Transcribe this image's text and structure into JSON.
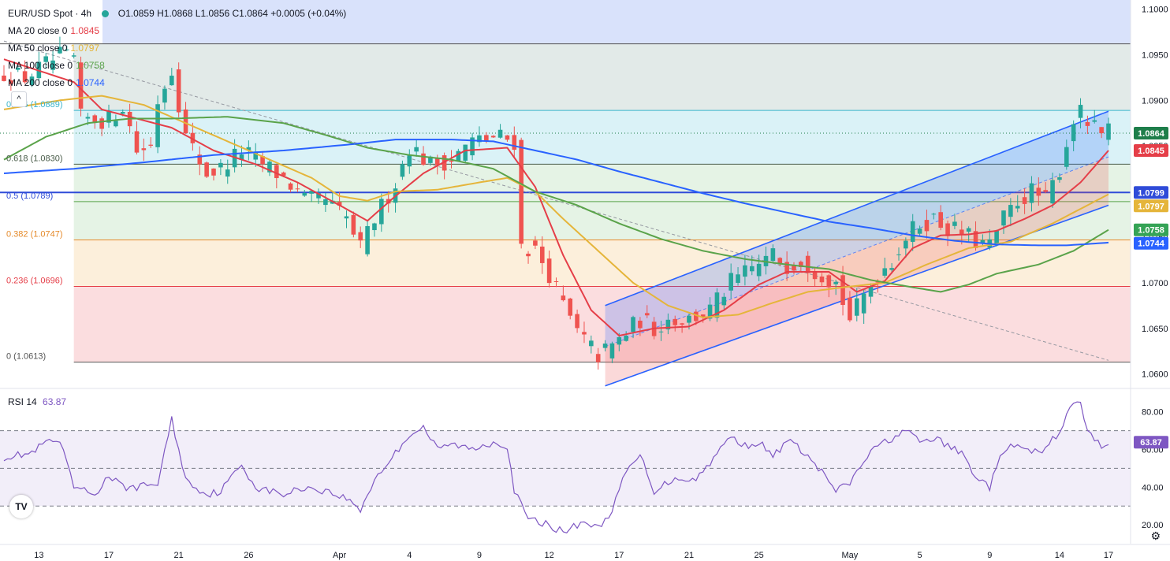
{
  "header": {
    "symbol": "EUR/USD Spot · 4h",
    "ohlc": "O1.0859 H1.0868 L1.0856 C1.0864 +0.0005 (+0.04%)"
  },
  "indicators": [
    {
      "label": "MA 20 close 0",
      "value": "1.0845",
      "color": "#e53e48"
    },
    {
      "label": "MA 50 close 0",
      "value": "1.0797",
      "color": "#e5b53a"
    },
    {
      "label": "MA 100 close 0",
      "value": "1.0758",
      "color": "#5aa34a"
    },
    {
      "label": "MA 200 close 0",
      "value": "1.0744",
      "color": "#2962ff"
    }
  ],
  "fib_labels": [
    {
      "text": "0.786 (1.0889)",
      "level": 1.0889,
      "color": "#3ab5cb"
    },
    {
      "text": "0.618 (1.0830)",
      "level": 1.083,
      "color": "#4a5d4a"
    },
    {
      "text": "0.5 (1.0789)",
      "level": 1.0789,
      "color": "#2f4bd8"
    },
    {
      "text": "0.382 (1.0747)",
      "level": 1.0747,
      "color": "#e58a2a"
    },
    {
      "text": "0.236 (1.0696)",
      "level": 1.0696,
      "color": "#e53e48"
    },
    {
      "text": "0 (1.0613)",
      "level": 1.0613,
      "color": "#555555"
    }
  ],
  "price_badges": [
    {
      "text": "1.0864",
      "value": 1.0864,
      "bg": "#1e7e4a"
    },
    {
      "text": "1.0845",
      "value": 1.0845,
      "bg": "#e53e48"
    },
    {
      "text": "1.0799",
      "value": 1.0799,
      "bg": "#2f4bd8"
    },
    {
      "text": "1.0797",
      "value": 1.0797,
      "bg": "#e5b53a"
    },
    {
      "text": "1.0758",
      "value": 1.0758,
      "bg": "#35a356"
    },
    {
      "text": "1.0744",
      "value": 1.0744,
      "bg": "#2962ff"
    }
  ],
  "rsi": {
    "label": "RSI 14",
    "value": "63.87",
    "badge": "63.87",
    "color": "#7e57c2"
  },
  "colors": {
    "up": "#26a69a",
    "down": "#ef5350",
    "channel": "#2962ff",
    "trend": "#9598a1"
  },
  "ui": {
    "logo": "TV",
    "collapse": "^",
    "settings_icon": "gear-icon",
    "settings_glyph": "⚙"
  },
  "chart_data": {
    "type": "candlestick",
    "timeframe": "4h",
    "price_axis": {
      "ylim": [
        1.0585,
        1.101
      ],
      "ticks": [
        "1.0600",
        "1.0650",
        "1.0700",
        "1.0750",
        "1.0800",
        "1.0850",
        "1.0900",
        "1.0950",
        "1.1000"
      ]
    },
    "rsi_axis": {
      "ylim": [
        10,
        92
      ],
      "ticks": [
        "20.00",
        "40.00",
        "60.00",
        "80.00"
      ],
      "bands": [
        70,
        50,
        30
      ]
    },
    "x_range": [
      0,
      158
    ],
    "x_ticks": [
      {
        "label": "13",
        "x": 5
      },
      {
        "label": "17",
        "x": 15
      },
      {
        "label": "21",
        "x": 25
      },
      {
        "label": "26",
        "x": 35
      },
      {
        "label": "Apr",
        "x": 48
      },
      {
        "label": "4",
        "x": 58
      },
      {
        "label": "9",
        "x": 68
      },
      {
        "label": "12",
        "x": 78
      },
      {
        "label": "17",
        "x": 88
      },
      {
        "label": "21",
        "x": 98
      },
      {
        "label": "25",
        "x": 108
      },
      {
        "label": "May",
        "x": 121
      },
      {
        "label": "5",
        "x": 131
      },
      {
        "label": "9",
        "x": 141
      },
      {
        "label": "14",
        "x": 151
      },
      {
        "label": "17",
        "x": 158
      }
    ],
    "close_anchors": [
      [
        0,
        1.093
      ],
      [
        3,
        1.0925
      ],
      [
        8,
        1.0948
      ],
      [
        10,
        1.0945
      ],
      [
        11,
        1.088
      ],
      [
        15,
        1.0878
      ],
      [
        17,
        1.0895
      ],
      [
        19,
        1.0845
      ],
      [
        21,
        1.085
      ],
      [
        22,
        1.09
      ],
      [
        24,
        1.0935
      ],
      [
        26,
        1.086
      ],
      [
        29,
        1.082
      ],
      [
        31,
        1.0825
      ],
      [
        34,
        1.0845
      ],
      [
        37,
        1.083
      ],
      [
        40,
        1.0815
      ],
      [
        43,
        1.079
      ],
      [
        46,
        1.079
      ],
      [
        49,
        1.077
      ],
      [
        51,
        1.0737
      ],
      [
        53,
        1.077
      ],
      [
        56,
        1.081
      ],
      [
        58,
        1.085
      ],
      [
        61,
        1.083
      ],
      [
        64,
        1.0835
      ],
      [
        67,
        1.0855
      ],
      [
        71,
        1.086
      ],
      [
        73,
        1.0855
      ],
      [
        74,
        1.074
      ],
      [
        76,
        1.0735
      ],
      [
        78,
        1.071
      ],
      [
        80,
        1.0675
      ],
      [
        82,
        1.0645
      ],
      [
        85,
        1.062
      ],
      [
        87,
        1.063
      ],
      [
        89,
        1.0645
      ],
      [
        91,
        1.066
      ],
      [
        93,
        1.065
      ],
      [
        95,
        1.066
      ],
      [
        98,
        1.066
      ],
      [
        101,
        1.067
      ],
      [
        104,
        1.07
      ],
      [
        106,
        1.071
      ],
      [
        108,
        1.072
      ],
      [
        110,
        1.073
      ],
      [
        112,
        1.072
      ],
      [
        114,
        1.0725
      ],
      [
        117,
        1.071
      ],
      [
        119,
        1.07
      ],
      [
        121,
        1.066
      ],
      [
        123,
        1.0685
      ],
      [
        125,
        1.071
      ],
      [
        127,
        1.0725
      ],
      [
        129,
        1.075
      ],
      [
        131,
        1.0765
      ],
      [
        133,
        1.077
      ],
      [
        135,
        1.076
      ],
      [
        137,
        1.0755
      ],
      [
        139,
        1.0745
      ],
      [
        141,
        1.074
      ],
      [
        143,
        1.077
      ],
      [
        145,
        1.079
      ],
      [
        147,
        1.08
      ],
      [
        149,
        1.079
      ],
      [
        151,
        1.0825
      ],
      [
        153,
        1.088
      ],
      [
        154,
        1.0885
      ],
      [
        155,
        1.0875
      ],
      [
        156,
        1.0868
      ],
      [
        157,
        1.0862
      ],
      [
        158,
        1.0864
      ]
    ],
    "moving_averages": [
      {
        "name": "MA 20",
        "color": "#e53e48",
        "points": [
          [
            0,
            1.0945
          ],
          [
            10,
            1.092
          ],
          [
            14,
            1.089
          ],
          [
            19,
            1.088
          ],
          [
            24,
            1.087
          ],
          [
            30,
            1.0845
          ],
          [
            36,
            1.083
          ],
          [
            42,
            1.081
          ],
          [
            48,
            1.0785
          ],
          [
            52,
            1.0768
          ],
          [
            56,
            1.0795
          ],
          [
            60,
            1.082
          ],
          [
            66,
            1.0845
          ],
          [
            72,
            1.0848
          ],
          [
            76,
            1.0805
          ],
          [
            80,
            1.073
          ],
          [
            84,
            1.067
          ],
          [
            88,
            1.0642
          ],
          [
            93,
            1.065
          ],
          [
            98,
            1.0652
          ],
          [
            103,
            1.067
          ],
          [
            108,
            1.0698
          ],
          [
            112,
            1.0712
          ],
          [
            118,
            1.0712
          ],
          [
            122,
            1.069
          ],
          [
            126,
            1.0702
          ],
          [
            130,
            1.0738
          ],
          [
            134,
            1.0752
          ],
          [
            138,
            1.0753
          ],
          [
            142,
            1.0757
          ],
          [
            146,
            1.077
          ],
          [
            150,
            1.0785
          ],
          [
            154,
            1.081
          ],
          [
            158,
            1.0845
          ]
        ]
      },
      {
        "name": "MA 50",
        "color": "#e5b53a",
        "points": [
          [
            0,
            1.089
          ],
          [
            8,
            1.09
          ],
          [
            14,
            1.0905
          ],
          [
            20,
            1.0895
          ],
          [
            26,
            1.0875
          ],
          [
            32,
            1.0855
          ],
          [
            38,
            1.0835
          ],
          [
            44,
            1.0815
          ],
          [
            48,
            1.0795
          ],
          [
            52,
            1.079
          ],
          [
            56,
            1.08
          ],
          [
            62,
            1.0802
          ],
          [
            68,
            1.081
          ],
          [
            72,
            1.0815
          ],
          [
            76,
            1.08
          ],
          [
            80,
            1.077
          ],
          [
            85,
            1.0735
          ],
          [
            90,
            1.07
          ],
          [
            95,
            1.0675
          ],
          [
            100,
            1.0662
          ],
          [
            105,
            1.0665
          ],
          [
            110,
            1.0678
          ],
          [
            115,
            1.069
          ],
          [
            120,
            1.0695
          ],
          [
            126,
            1.07
          ],
          [
            132,
            1.072
          ],
          [
            138,
            1.0738
          ],
          [
            144,
            1.0745
          ],
          [
            150,
            1.0765
          ],
          [
            158,
            1.0797
          ]
        ]
      },
      {
        "name": "MA 100",
        "color": "#5aa34a",
        "points": [
          [
            0,
            1.0835
          ],
          [
            6,
            1.086
          ],
          [
            12,
            1.0875
          ],
          [
            18,
            1.088
          ],
          [
            24,
            1.088
          ],
          [
            32,
            1.0882
          ],
          [
            40,
            1.0875
          ],
          [
            46,
            1.0862
          ],
          [
            52,
            1.0848
          ],
          [
            58,
            1.084
          ],
          [
            64,
            1.0835
          ],
          [
            70,
            1.0825
          ],
          [
            76,
            1.08
          ],
          [
            82,
            1.0785
          ],
          [
            88,
            1.0765
          ],
          [
            94,
            1.0748
          ],
          [
            100,
            1.0735
          ],
          [
            106,
            1.0726
          ],
          [
            112,
            1.072
          ],
          [
            118,
            1.0715
          ],
          [
            124,
            1.0703
          ],
          [
            130,
            1.0695
          ],
          [
            134,
            1.069
          ],
          [
            138,
            1.0698
          ],
          [
            142,
            1.071
          ],
          [
            148,
            1.072
          ],
          [
            153,
            1.0735
          ],
          [
            158,
            1.0758
          ]
        ]
      },
      {
        "name": "MA 200",
        "color": "#2962ff",
        "points": [
          [
            0,
            1.082
          ],
          [
            10,
            1.0825
          ],
          [
            20,
            1.0832
          ],
          [
            30,
            1.084
          ],
          [
            40,
            1.0845
          ],
          [
            50,
            1.0852
          ],
          [
            56,
            1.0857
          ],
          [
            64,
            1.0857
          ],
          [
            70,
            1.0855
          ],
          [
            76,
            1.0845
          ],
          [
            82,
            1.0835
          ],
          [
            88,
            1.0822
          ],
          [
            94,
            1.081
          ],
          [
            100,
            1.0798
          ],
          [
            106,
            1.0787
          ],
          [
            112,
            1.0777
          ],
          [
            118,
            1.0767
          ],
          [
            124,
            1.076
          ],
          [
            130,
            1.0752
          ],
          [
            136,
            1.0746
          ],
          [
            142,
            1.0742
          ],
          [
            148,
            1.0741
          ],
          [
            152,
            1.0741
          ],
          [
            158,
            1.0744
          ]
        ]
      }
    ],
    "fib_retracement": {
      "x_start": 10,
      "x_end": 158,
      "levels": [
        {
          "ratio": 1.0,
          "price": 1.0962
        },
        {
          "ratio": 0.786,
          "price": 1.0889
        },
        {
          "ratio": 0.618,
          "price": 1.083
        },
        {
          "ratio": 0.5,
          "price": 1.0789
        },
        {
          "ratio": 0.382,
          "price": 1.0747
        },
        {
          "ratio": 0.236,
          "price": 1.0696
        },
        {
          "ratio": 0,
          "price": 1.0613
        }
      ],
      "top_zone": [
        1.0962,
        1.101
      ],
      "blue_line": 1.0799
    },
    "channel": {
      "upper": [
        [
          86,
          1.0675
        ],
        [
          158,
          1.0888
        ]
      ],
      "middle": [
        [
          86,
          1.063
        ],
        [
          158,
          1.0838
        ]
      ],
      "lower": [
        [
          86,
          1.0587
        ],
        [
          158,
          1.0785
        ]
      ]
    },
    "trendline": [
      [
        0,
        1.0965
      ],
      [
        158,
        1.0615
      ]
    ],
    "last_price_line": 1.0864,
    "rsi_anchors": [
      [
        0,
        56
      ],
      [
        4,
        58
      ],
      [
        6,
        64
      ],
      [
        8,
        64
      ],
      [
        10,
        40
      ],
      [
        13,
        36
      ],
      [
        15,
        46
      ],
      [
        17,
        40
      ],
      [
        19,
        40
      ],
      [
        22,
        42
      ],
      [
        24,
        76
      ],
      [
        26,
        44
      ],
      [
        29,
        36
      ],
      [
        31,
        38
      ],
      [
        34,
        52
      ],
      [
        36,
        40
      ],
      [
        40,
        36
      ],
      [
        43,
        40
      ],
      [
        46,
        38
      ],
      [
        49,
        34
      ],
      [
        51,
        28
      ],
      [
        53,
        44
      ],
      [
        56,
        58
      ],
      [
        58,
        68
      ],
      [
        60,
        72
      ],
      [
        62,
        60
      ],
      [
        64,
        63
      ],
      [
        67,
        60
      ],
      [
        70,
        64
      ],
      [
        72,
        62
      ],
      [
        73,
        38
      ],
      [
        75,
        23
      ],
      [
        78,
        20
      ],
      [
        80,
        16
      ],
      [
        83,
        22
      ],
      [
        85,
        18
      ],
      [
        87,
        28
      ],
      [
        89,
        48
      ],
      [
        91,
        57
      ],
      [
        93,
        38
      ],
      [
        96,
        45
      ],
      [
        99,
        44
      ],
      [
        102,
        58
      ],
      [
        104,
        67
      ],
      [
        106,
        62
      ],
      [
        108,
        64
      ],
      [
        110,
        56
      ],
      [
        112,
        65
      ],
      [
        114,
        60
      ],
      [
        117,
        48
      ],
      [
        119,
        38
      ],
      [
        121,
        42
      ],
      [
        123,
        54
      ],
      [
        125,
        62
      ],
      [
        127,
        66
      ],
      [
        129,
        70
      ],
      [
        131,
        64
      ],
      [
        133,
        66
      ],
      [
        135,
        62
      ],
      [
        137,
        58
      ],
      [
        139,
        46
      ],
      [
        141,
        40
      ],
      [
        143,
        60
      ],
      [
        145,
        62
      ],
      [
        147,
        58
      ],
      [
        149,
        60
      ],
      [
        151,
        70
      ],
      [
        153,
        85
      ],
      [
        154,
        84
      ],
      [
        155,
        70
      ],
      [
        156,
        65
      ],
      [
        157,
        62
      ],
      [
        158,
        64
      ]
    ]
  }
}
